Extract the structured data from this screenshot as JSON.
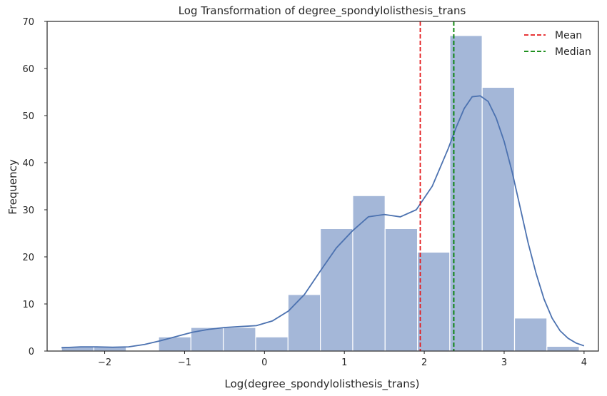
{
  "chart_data": {
    "type": "bar",
    "title": "Log Transformation of degree_spondylolisthesis_trans",
    "xlabel": "Log(degree_spondylolisthesis_trans)",
    "ylabel": "Frequency",
    "xlim": [
      -2.72,
      4.18
    ],
    "ylim": [
      0,
      70
    ],
    "xticks": [
      -2,
      -1,
      0,
      1,
      2,
      3,
      4
    ],
    "xtick_labels": [
      "−2",
      "−1",
      "0",
      "1",
      "2",
      "3",
      "4"
    ],
    "yticks": [
      0,
      10,
      20,
      30,
      40,
      50,
      60,
      70
    ],
    "grid": false,
    "legend_position": "top-right",
    "bin_edges": [
      -2.54,
      -2.135,
      -1.73,
      -1.325,
      -0.92,
      -0.515,
      -0.11,
      0.295,
      0.7,
      1.105,
      1.51,
      1.915,
      2.32,
      2.725,
      3.13,
      3.535,
      3.94
    ],
    "counts": [
      1,
      1,
      0,
      3,
      5,
      5,
      3,
      12,
      26,
      33,
      26,
      21,
      67,
      56,
      7,
      1
    ],
    "bar_color": "#a4b7d8",
    "kde_color": "#4c72b0",
    "kde": {
      "x": [
        -2.54,
        -2.3,
        -2.1,
        -1.9,
        -1.7,
        -1.5,
        -1.3,
        -1.1,
        -0.9,
        -0.7,
        -0.5,
        -0.3,
        -0.1,
        0.1,
        0.3,
        0.5,
        0.7,
        0.9,
        1.1,
        1.3,
        1.5,
        1.7,
        1.9,
        2.1,
        2.3,
        2.4,
        2.5,
        2.6,
        2.7,
        2.8,
        2.9,
        3.0,
        3.1,
        3.2,
        3.3,
        3.4,
        3.5,
        3.6,
        3.7,
        3.8,
        3.9,
        4.0
      ],
      "y": [
        0.7,
        0.9,
        0.9,
        0.8,
        0.9,
        1.4,
        2.2,
        3.1,
        4.0,
        4.6,
        5.0,
        5.2,
        5.4,
        6.4,
        8.5,
        12.0,
        17.0,
        21.9,
        25.5,
        28.5,
        29.0,
        28.5,
        30.0,
        35.0,
        43.0,
        47.5,
        51.5,
        54.0,
        54.2,
        53.0,
        49.5,
        44.5,
        38.0,
        30.5,
        23.0,
        16.5,
        11.0,
        7.0,
        4.3,
        2.7,
        1.7,
        1.1
      ]
    },
    "reference_lines": [
      {
        "name": "Mean",
        "x": 1.95,
        "color": "#e41a1c"
      },
      {
        "name": "Median",
        "x": 2.37,
        "color": "#008000"
      }
    ]
  }
}
